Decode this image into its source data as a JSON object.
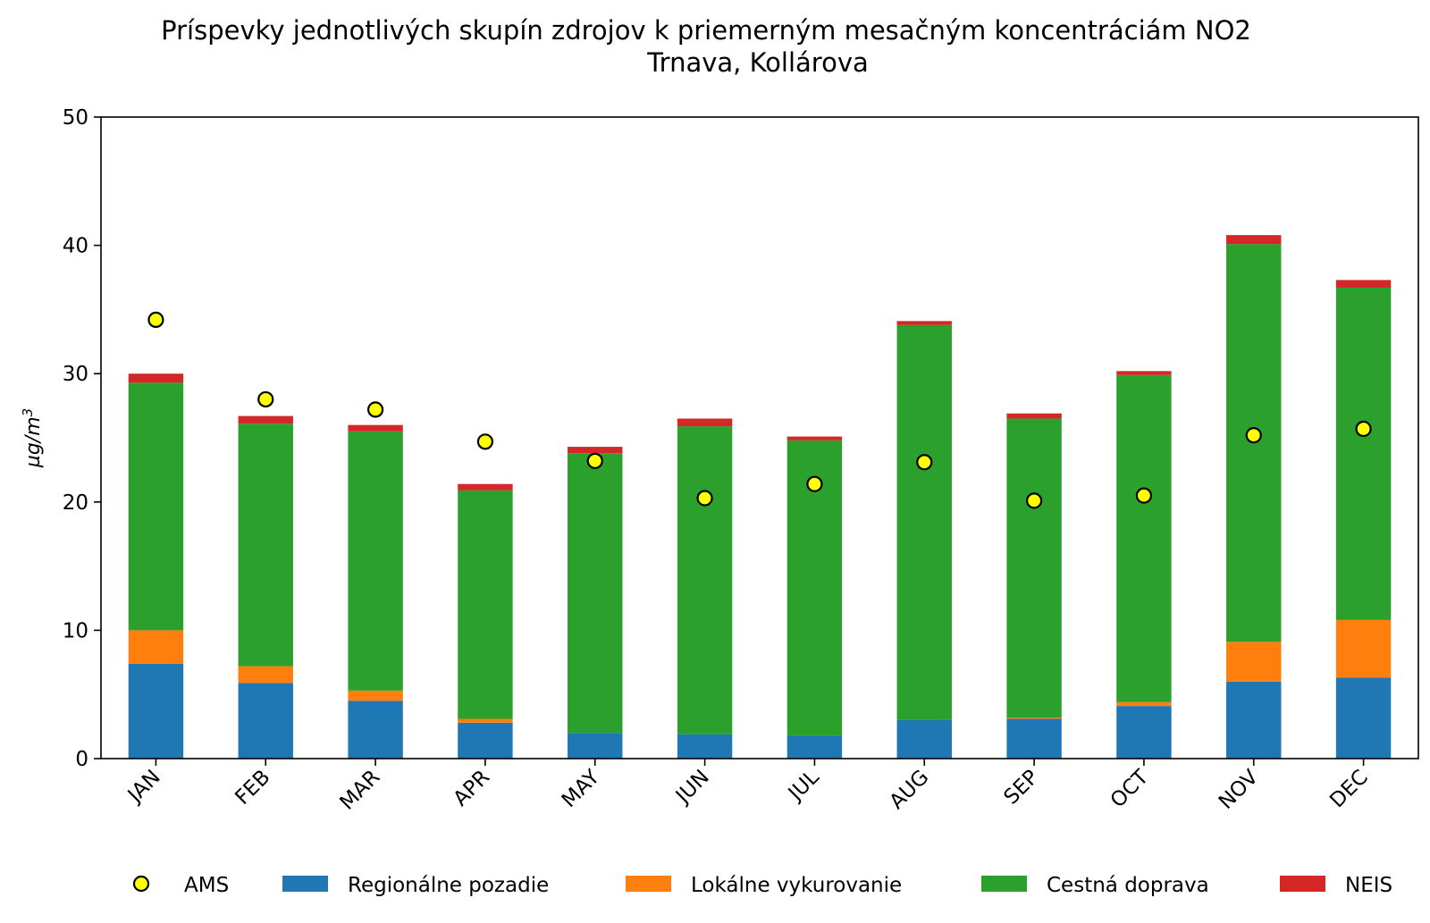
{
  "chart_data": {
    "type": "bar",
    "stacked": true,
    "title": "Príspevky jednotlivých skupín zdrojov k priemerným mesačným koncentráciám NO2",
    "subtitle": "Trnava, Kollárova",
    "xlabel": "",
    "ylabel": "µg/m",
    "ylabel_superscript": "3",
    "ylim": [
      0,
      50
    ],
    "yticks": [
      0,
      10,
      20,
      30,
      40,
      50
    ],
    "ytick_labels": [
      "0",
      "10",
      "20",
      "30",
      "40",
      "50"
    ],
    "categories": [
      "JAN",
      "FEB",
      "MAR",
      "APR",
      "MAY",
      "JUN",
      "JUL",
      "AUG",
      "SEP",
      "OCT",
      "NOV",
      "DEC"
    ],
    "series": [
      {
        "name": "Regionálne pozadie",
        "color": "#1f77b4",
        "values": [
          7.4,
          5.9,
          4.5,
          2.8,
          2.0,
          1.9,
          1.8,
          3.0,
          3.1,
          4.1,
          6.0,
          6.3
        ]
      },
      {
        "name": "Lokálne vykurovanie",
        "color": "#ff7f0e",
        "values": [
          2.6,
          1.3,
          0.8,
          0.3,
          0.0,
          0.0,
          0.0,
          0.0,
          0.1,
          0.3,
          3.1,
          4.5
        ]
      },
      {
        "name": "Cestná doprava",
        "color": "#2ca02c",
        "values": [
          19.3,
          18.9,
          20.2,
          17.8,
          21.8,
          24.0,
          23.0,
          30.8,
          23.3,
          25.5,
          31.0,
          25.9
        ]
      },
      {
        "name": "NEIS",
        "color": "#d62728",
        "values": [
          0.7,
          0.6,
          0.5,
          0.5,
          0.5,
          0.6,
          0.3,
          0.3,
          0.4,
          0.3,
          0.7,
          0.6
        ]
      }
    ],
    "points": {
      "name": "AMS",
      "color": "#ffff00",
      "edge_color": "#000000",
      "values": [
        34.2,
        28.0,
        27.2,
        24.7,
        23.2,
        20.3,
        21.4,
        23.1,
        20.1,
        20.5,
        25.2,
        25.7
      ]
    },
    "legend": [
      "AMS",
      "Regionálne pozadie",
      "Lokálne vykurovanie",
      "Cestná doprava",
      "NEIS"
    ],
    "legend_position": "bottom"
  }
}
